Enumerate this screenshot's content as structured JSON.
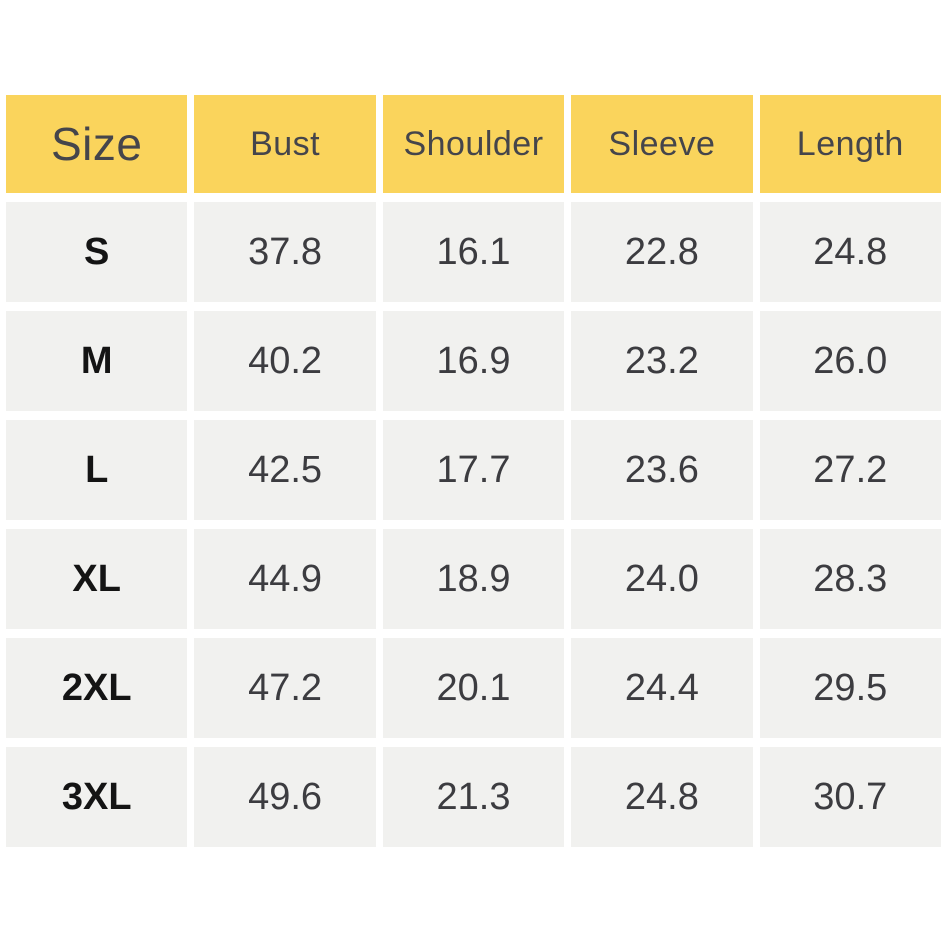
{
  "table": {
    "columns": [
      "Size",
      "Bust",
      "Shoulder",
      "Sleeve",
      "Length"
    ],
    "rows": [
      {
        "size": "S",
        "values": [
          "37.8",
          "16.1",
          "22.8",
          "24.8"
        ]
      },
      {
        "size": "M",
        "values": [
          "40.2",
          "16.9",
          "23.2",
          "26.0"
        ]
      },
      {
        "size": "L",
        "values": [
          "42.5",
          "17.7",
          "23.6",
          "27.2"
        ]
      },
      {
        "size": "XL",
        "values": [
          "44.9",
          "18.9",
          "24.0",
          "28.3"
        ]
      },
      {
        "size": "2XL",
        "values": [
          "47.2",
          "20.1",
          "24.4",
          "29.5"
        ]
      },
      {
        "size": "3XL",
        "values": [
          "49.6",
          "21.3",
          "24.8",
          "30.7"
        ]
      }
    ]
  },
  "chart_data": {
    "type": "table",
    "title": "",
    "columns": [
      "Size",
      "Bust",
      "Shoulder",
      "Sleeve",
      "Length"
    ],
    "rows": [
      [
        "S",
        37.8,
        16.1,
        22.8,
        24.8
      ],
      [
        "M",
        40.2,
        16.9,
        23.2,
        26.0
      ],
      [
        "L",
        42.5,
        17.7,
        23.6,
        27.2
      ],
      [
        "XL",
        44.9,
        18.9,
        24.0,
        28.3
      ],
      [
        "2XL",
        47.2,
        20.1,
        24.4,
        29.5
      ],
      [
        "3XL",
        49.6,
        21.3,
        24.8,
        30.7
      ]
    ]
  },
  "colors": {
    "page-bg": "#ffffff",
    "header-bg": "#fad45c",
    "cell-bg": "#f1f1ef",
    "header-text": "#45454b",
    "value-text": "#3c3c40",
    "label-text": "#141414"
  }
}
